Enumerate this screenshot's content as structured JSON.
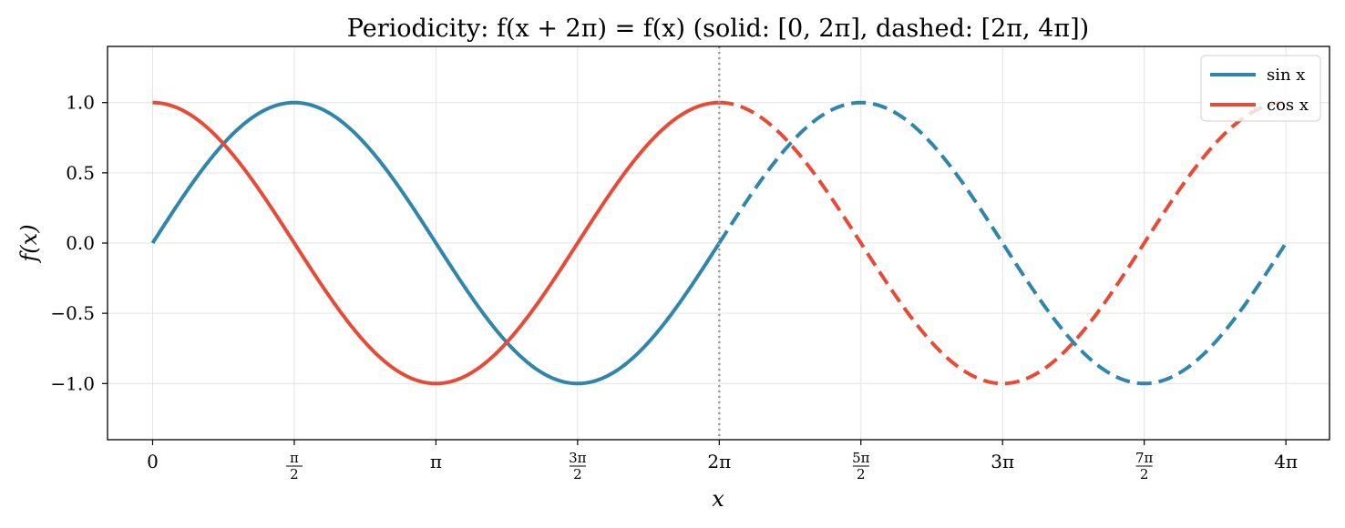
{
  "chart_data": {
    "type": "line",
    "title": "Periodicity:  f(x + 2π) = f(x)     (solid: [0, 2π], dashed: [2π, 4π])",
    "xlabel": "x",
    "ylabel": "f(x)",
    "xlim": [
      -0.5,
      13.05
    ],
    "ylim": [
      -1.4,
      1.4
    ],
    "x_ticks": [
      {
        "value": 0,
        "label": "0"
      },
      {
        "value": 1.5708,
        "label": "π/2"
      },
      {
        "value": 3.1416,
        "label": "π"
      },
      {
        "value": 4.7124,
        "label": "3π/2"
      },
      {
        "value": 6.2832,
        "label": "2π"
      },
      {
        "value": 7.854,
        "label": "5π/2"
      },
      {
        "value": 9.4248,
        "label": "3π"
      },
      {
        "value": 10.9956,
        "label": "7π/2"
      },
      {
        "value": 12.5664,
        "label": "4π"
      }
    ],
    "y_ticks": [
      {
        "value": 1.0,
        "label": "1.0"
      },
      {
        "value": 0.5,
        "label": "0.5"
      },
      {
        "value": 0.0,
        "label": "0.0"
      },
      {
        "value": -0.5,
        "label": "−0.5"
      },
      {
        "value": -1.0,
        "label": "−1.0"
      }
    ],
    "grid": true,
    "legend_position": "top-right",
    "vertical_line": {
      "x": 6.2832,
      "style": "dotted",
      "color": "#999999"
    },
    "series": [
      {
        "name": "sin x",
        "color": "#2E86AB",
        "x": [
          0,
          0.7854,
          1.5708,
          2.3562,
          3.1416,
          3.927,
          4.7124,
          5.4978,
          6.2832
        ],
        "values": [
          0,
          0.7071,
          1,
          0.7071,
          0,
          -0.7071,
          -1,
          -0.7071,
          0
        ],
        "style": "solid"
      },
      {
        "name": "cos x",
        "color": "#E84A35",
        "x": [
          0,
          0.7854,
          1.5708,
          2.3562,
          3.1416,
          3.927,
          4.7124,
          5.4978,
          6.2832
        ],
        "values": [
          1,
          0.7071,
          0,
          -0.7071,
          -1,
          -0.7071,
          0,
          0.7071,
          1
        ],
        "style": "solid"
      },
      {
        "name": "sin x",
        "color": "#2E86AB",
        "x": [
          6.2832,
          7.0686,
          7.854,
          8.6394,
          9.4248,
          10.2102,
          10.9956,
          11.781,
          12.5664
        ],
        "values": [
          0,
          0.7071,
          1,
          0.7071,
          0,
          -0.7071,
          -1,
          -0.7071,
          0
        ],
        "style": "dashed"
      },
      {
        "name": "cos x",
        "color": "#E84A35",
        "x": [
          6.2832,
          7.0686,
          7.854,
          8.6394,
          9.4248,
          10.2102,
          10.9956,
          11.781,
          12.5664
        ],
        "values": [
          1,
          0.7071,
          0,
          -0.7071,
          -1,
          -0.7071,
          0,
          0.7071,
          1
        ],
        "style": "dashed"
      }
    ],
    "legend": [
      {
        "label": "sin x",
        "color": "#2E86AB"
      },
      {
        "label": "cos x",
        "color": "#E84A35"
      }
    ]
  }
}
